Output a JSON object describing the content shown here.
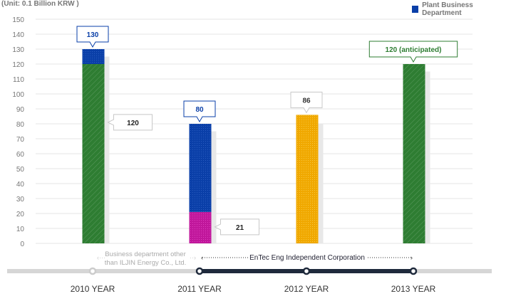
{
  "chart_data": {
    "type": "bar",
    "unit_label": "(Unit: 0.1 Billion KRW )",
    "legend": [
      {
        "name": "Plant Business Department",
        "color": "#0a3fa8"
      }
    ],
    "ylim": [
      0,
      150
    ],
    "yticks": [
      0,
      10,
      20,
      30,
      40,
      50,
      60,
      70,
      80,
      90,
      100,
      110,
      120,
      130,
      140,
      150
    ],
    "categories": [
      "2010 YEAR",
      "2011 YEAR",
      "2012 YEAR",
      "2013 YEAR"
    ],
    "bars": [
      {
        "segments": [
          {
            "from": 0,
            "to": 120,
            "color": "#2e7d32",
            "pattern": "hatch"
          },
          {
            "from": 120,
            "to": 130,
            "color": "#0a3fa8",
            "pattern": "dots"
          }
        ],
        "shadow": 125
      },
      {
        "segments": [
          {
            "from": 0,
            "to": 21,
            "color": "#c0179b",
            "pattern": "dots"
          },
          {
            "from": 21,
            "to": 80,
            "color": "#0a3fa8",
            "pattern": "dots"
          }
        ],
        "shadow": 75
      },
      {
        "segments": [
          {
            "from": 0,
            "to": 86,
            "color": "#f0a800",
            "pattern": "dots"
          }
        ],
        "shadow": 80
      },
      {
        "segments": [
          {
            "from": 0,
            "to": 120,
            "color": "#2e7d32",
            "pattern": "hatch"
          }
        ],
        "shadow": 115
      }
    ],
    "callouts": [
      {
        "bar": 0,
        "label": "130",
        "style": "top",
        "color": "#0a3fa8",
        "value": 130
      },
      {
        "bar": 0,
        "label": "120",
        "style": "side",
        "color": "#222222",
        "value": 81
      },
      {
        "bar": 1,
        "label": "80",
        "style": "top",
        "color": "#0a3fa8",
        "value": 80
      },
      {
        "bar": 1,
        "label": "21",
        "style": "side",
        "color": "#222222",
        "value": 11
      },
      {
        "bar": 2,
        "label": "86",
        "style": "top",
        "color": "#333333",
        "value": 86
      },
      {
        "bar": 3,
        "label": "120 (anticipated)",
        "style": "top",
        "color": "#2e7d32",
        "value": 120
      }
    ],
    "periods": [
      {
        "label_line1": "Business department other",
        "label_line2": "than ILJIN Energy Co., Ltd."
      },
      {
        "label": "EnTec Eng Independent Corporation"
      }
    ]
  }
}
